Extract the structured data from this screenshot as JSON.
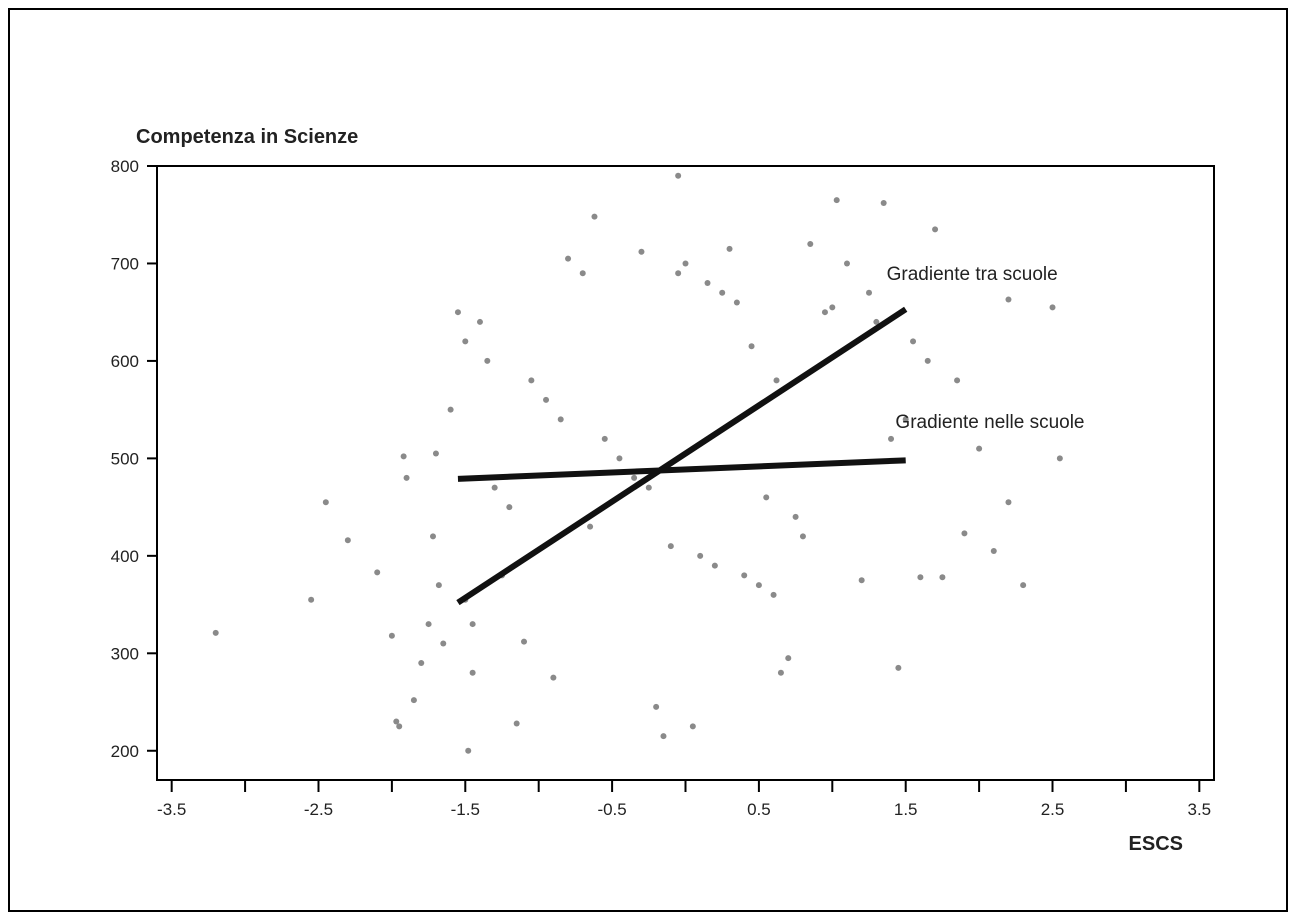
{
  "chart_data": {
    "type": "scatter",
    "title": "",
    "ylabel": "Competenza in Scienze",
    "xlabel": "ESCS",
    "xlim": [
      -3.6,
      3.6
    ],
    "ylim": [
      170,
      800
    ],
    "x_ticks": [
      -3.5,
      -2.5,
      -1.5,
      -0.5,
      0.5,
      1.5,
      2.5,
      3.5
    ],
    "x_tick_labels": [
      "-3.5",
      "-2.5",
      "-1.5",
      "-0.5",
      "0.5",
      "1.5",
      "2.5",
      "3.5"
    ],
    "x_minor_ticks": [
      -3.0,
      -2.0,
      -1.0,
      0.0,
      1.0,
      2.0,
      3.0
    ],
    "y_ticks": [
      200,
      300,
      400,
      500,
      600,
      700,
      800
    ],
    "y_tick_labels": [
      "200",
      "300",
      "400",
      "500",
      "600",
      "700",
      "800"
    ],
    "grid": false,
    "point_color": "#8a8a8a",
    "line_color": "#111111",
    "lines": [
      {
        "name": "Gradiente tra scuole",
        "x": [
          -1.55,
          1.5
        ],
        "y": [
          352,
          653
        ]
      },
      {
        "name": "Gradiente nelle scuole",
        "x": [
          -1.55,
          1.5
        ],
        "y": [
          479,
          498
        ]
      }
    ],
    "annotations": [
      {
        "text": "Gradiente tra scuole",
        "x": 1.37,
        "y": 683
      },
      {
        "text": "Gradiente nelle scuole",
        "x": 1.43,
        "y": 531
      }
    ],
    "points": {
      "x": [
        -3.2,
        -2.55,
        -2.45,
        -2.3,
        -2.1,
        -2.0,
        -1.97,
        -1.95,
        -1.92,
        -1.9,
        -1.85,
        -1.8,
        -1.75,
        -1.72,
        -1.7,
        -1.68,
        -1.65,
        -1.6,
        -1.55,
        -1.5,
        -1.48,
        -1.45,
        -1.4,
        -1.35,
        -0.05,
        0.0,
        -0.62,
        1.03,
        1.35,
        1.7,
        0.85,
        0.3,
        -0.3,
        2.2,
        2.5,
        2.55,
        2.2,
        2.1,
        2.3,
        1.45,
        1.6,
        1.75,
        1.9,
        2.0,
        -0.15,
        0.05,
        -0.2,
        -0.9,
        1.2,
        1.85,
        0.95,
        -0.05,
        0.62,
        0.65,
        0.7,
        -1.15,
        -1.1,
        -1.45,
        -1.5,
        -1.25,
        -0.8,
        -0.7,
        0.15,
        0.25,
        0.35,
        0.45,
        1.0,
        1.1,
        1.25,
        1.3,
        1.55,
        1.65,
        -1.05,
        -0.95,
        -0.85,
        -0.55,
        -0.45,
        -0.35,
        -0.25,
        0.55,
        0.75,
        0.8,
        1.4,
        1.5,
        -1.3,
        -1.2,
        -0.65,
        -0.1,
        0.1,
        0.2,
        0.4,
        0.5,
        0.6
      ],
      "y": [
        321,
        355,
        455,
        416,
        383,
        318,
        230,
        225,
        502,
        480,
        252,
        290,
        330,
        420,
        505,
        370,
        310,
        550,
        650,
        620,
        200,
        280,
        640,
        600,
        790,
        700,
        748,
        765,
        762,
        735,
        720,
        715,
        712,
        663,
        655,
        500,
        455,
        405,
        370,
        285,
        378,
        378,
        423,
        510,
        215,
        225,
        245,
        275,
        375,
        580,
        650,
        690,
        580,
        280,
        295,
        228,
        312,
        330,
        355,
        380,
        705,
        690,
        680,
        670,
        660,
        615,
        655,
        700,
        670,
        640,
        620,
        600,
        580,
        560,
        540,
        520,
        500,
        480,
        470,
        460,
        440,
        420,
        520,
        540,
        470,
        450,
        430,
        410,
        400,
        390,
        380,
        370,
        360
      ]
    }
  }
}
